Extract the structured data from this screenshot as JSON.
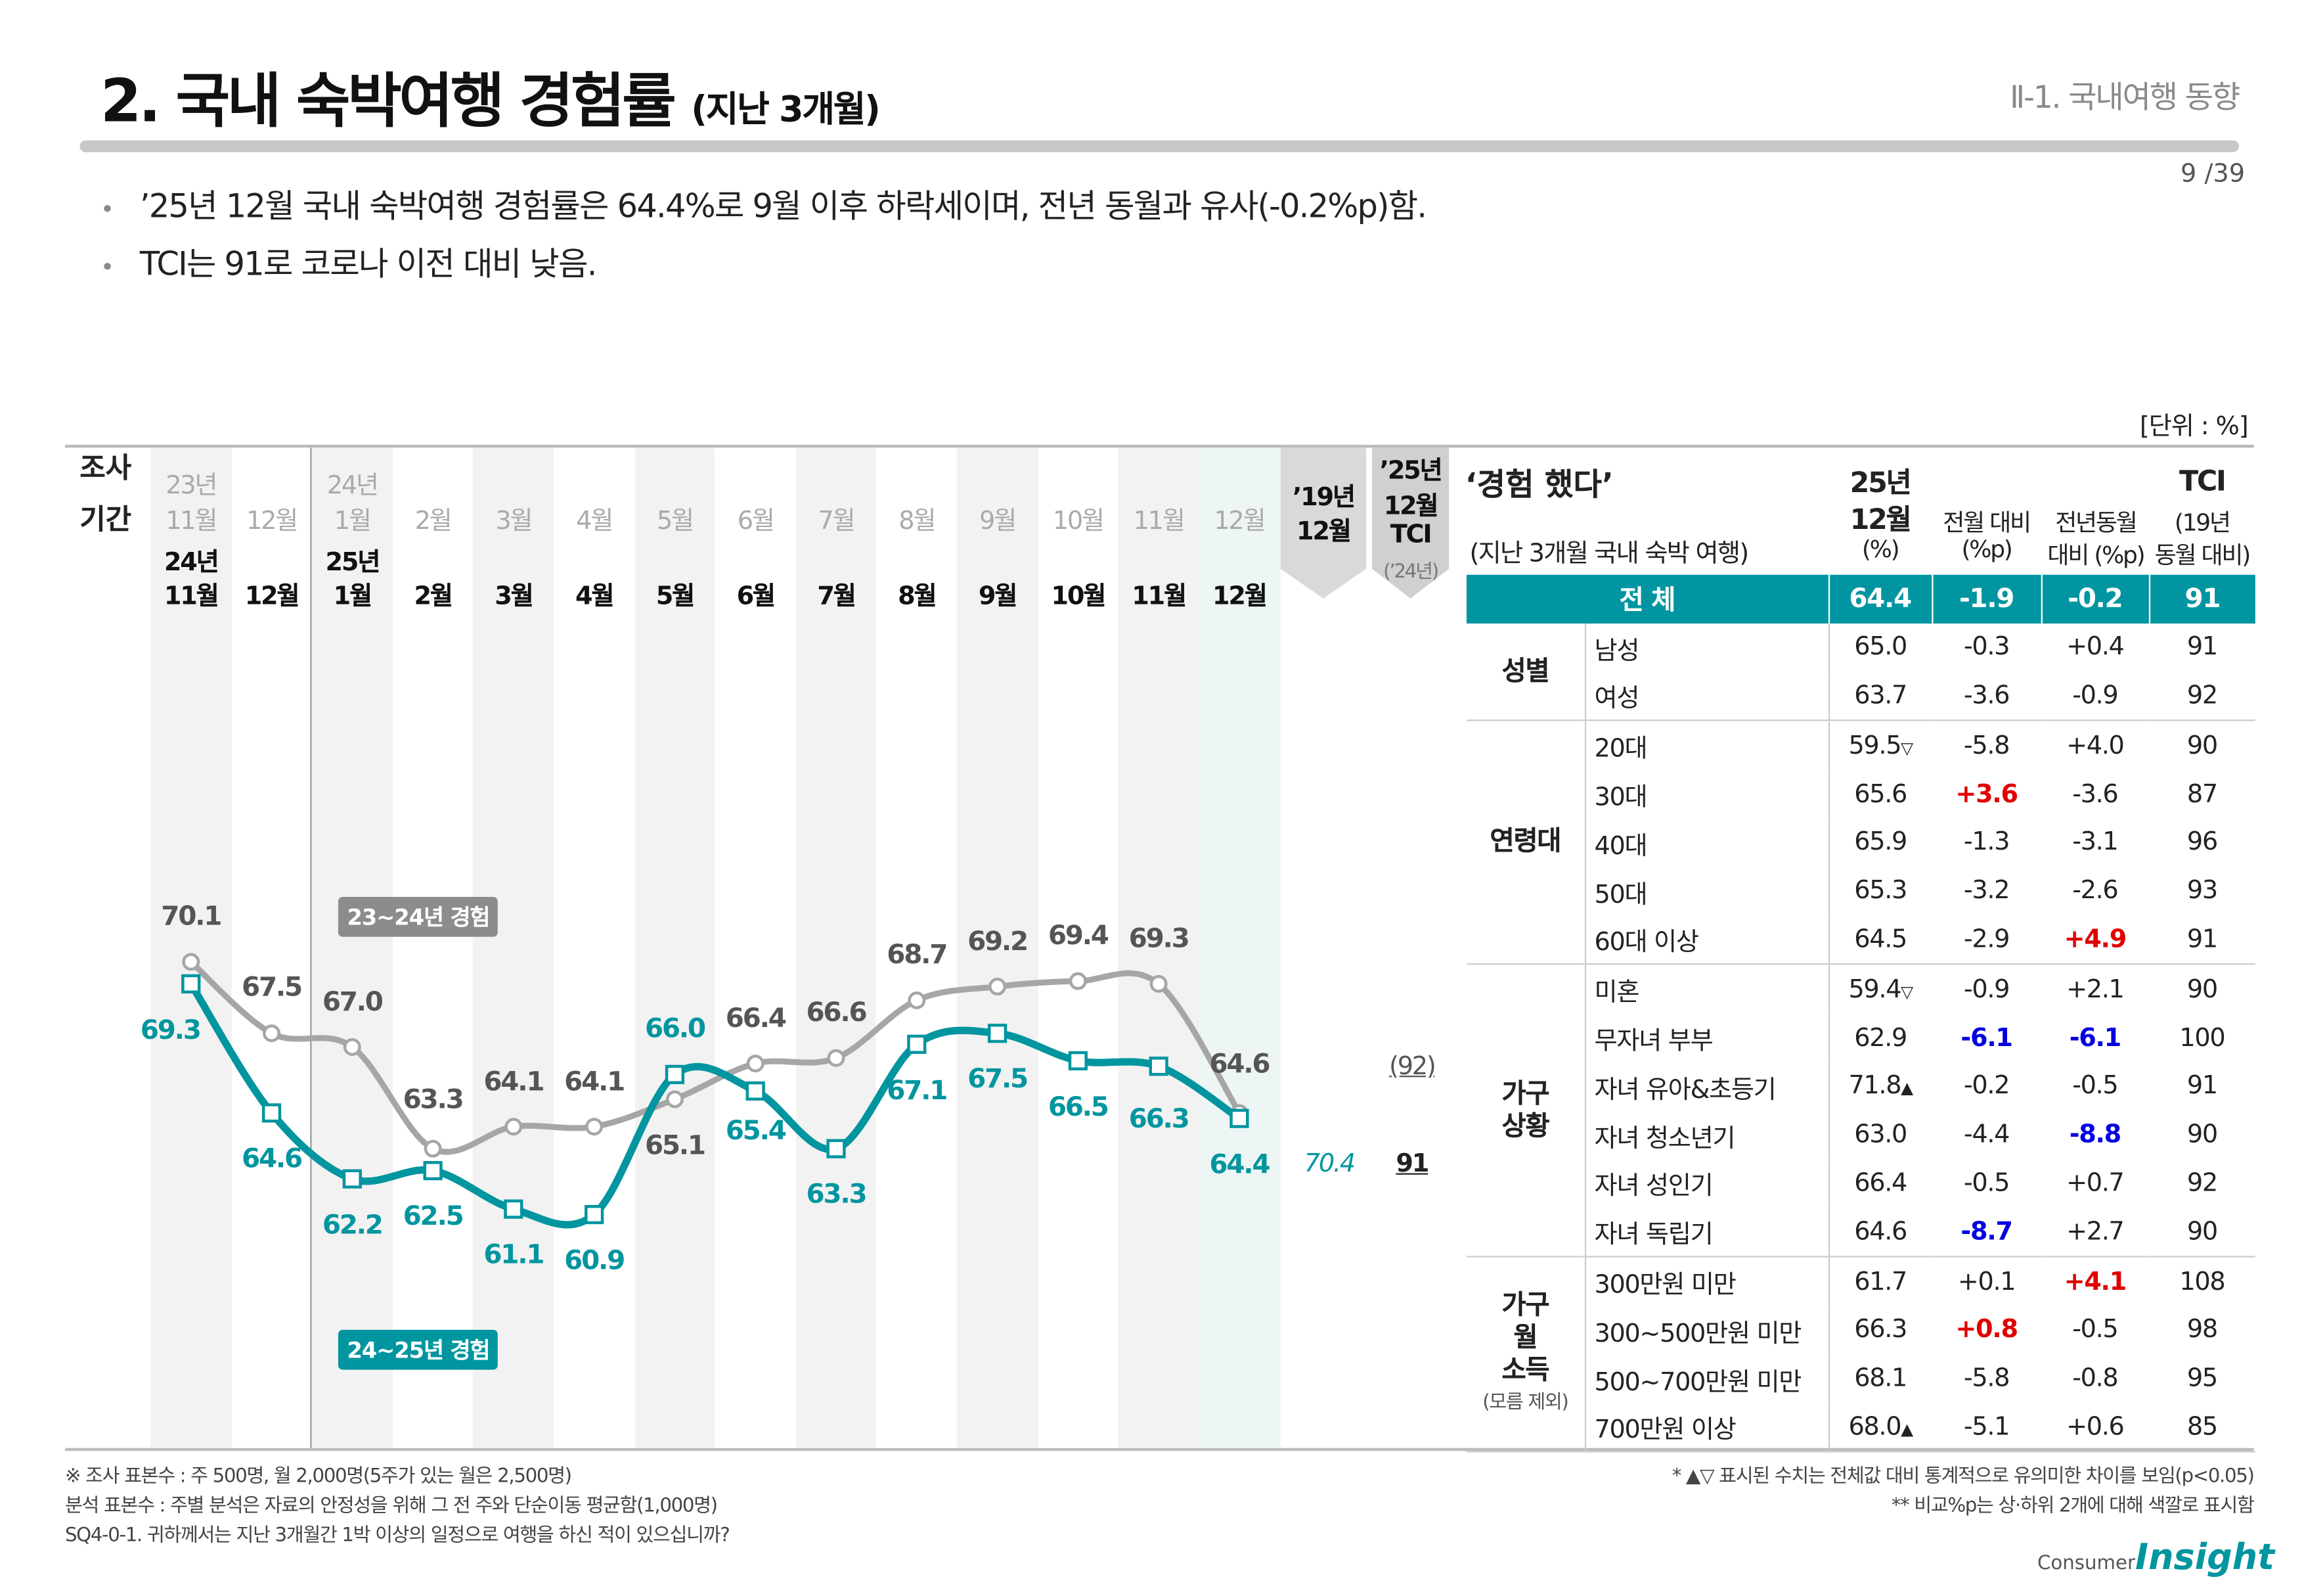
{
  "header": {
    "title": "2. 국내 숙박여행 경험률",
    "title_sub": "(지난 3개월)",
    "section": "Ⅱ-1. 국내여행 동향",
    "page": "9 /39"
  },
  "bullets": [
    "’25년 12월 국내 숙박여행 경험률은 64.4%로 9월 이후 하락세이며, 전년 동월과 유사(-0.2%p)함.",
    "TCI는 91로 코로나 이전 대비 낮음."
  ],
  "unit": "[단위 : %]",
  "chart_data": {
    "type": "line",
    "period_label": [
      "조사",
      "기간"
    ],
    "categories_prev": [
      "11월",
      "12월",
      "1월",
      "2월",
      "3월",
      "4월",
      "5월",
      "6월",
      "7월",
      "8월",
      "9월",
      "10월",
      "11월",
      "12월"
    ],
    "categories_prev_year": {
      "0": "23년",
      "2": "24년"
    },
    "categories": [
      "11월",
      "12월",
      "1월",
      "2월",
      "3월",
      "4월",
      "5월",
      "6월",
      "7월",
      "8월",
      "9월",
      "10월",
      "11월",
      "12월"
    ],
    "categories_year": {
      "0": "24년",
      "2": "25년"
    },
    "series": [
      {
        "name": "23~24년 경험",
        "color": "#a6a6a6",
        "values": [
          70.1,
          67.5,
          67.0,
          63.3,
          64.1,
          64.1,
          65.1,
          66.4,
          66.6,
          68.7,
          69.2,
          69.4,
          69.3,
          64.6
        ]
      },
      {
        "name": "24~25년 경험",
        "color": "#00959f",
        "values": [
          69.3,
          64.6,
          62.2,
          62.5,
          61.1,
          60.9,
          66.0,
          65.4,
          63.3,
          67.1,
          67.5,
          66.5,
          66.3,
          64.4
        ]
      }
    ],
    "baseline_header": [
      "’19년",
      "12월"
    ],
    "baseline_value": "70.4",
    "tci_header": [
      "’25년",
      "12월",
      "TCI"
    ],
    "tci_sub": "(’24년)",
    "tci_prev": "(92)",
    "tci_value": "91"
  },
  "table": {
    "title": "‘경험 했다’",
    "subtitle": "(지난 3개월 국내 숙박 여행)",
    "headers": [
      [
        "25년",
        "12월",
        "(%)"
      ],
      [
        "전월 대비",
        "(%p)"
      ],
      [
        "전년동월",
        "대비 (%p)"
      ],
      [
        "TCI",
        "(19년",
        "동월 대비)"
      ]
    ],
    "total": {
      "label": "전  체",
      "value": "64.4",
      "mom": "-1.9",
      "yoy": "-0.2",
      "tci": "91"
    },
    "groups": [
      {
        "label": "성별",
        "sub": "",
        "rows": [
          {
            "item": "남성",
            "value": "65.0",
            "mark": "",
            "mom": "-0.3",
            "yoy": "+0.4",
            "tci": "91"
          },
          {
            "item": "여성",
            "value": "63.7",
            "mark": "",
            "mom": "-3.6",
            "yoy": "-0.9",
            "tci": "92"
          }
        ]
      },
      {
        "label": "연령대",
        "sub": "",
        "rows": [
          {
            "item": "20대",
            "value": "59.5",
            "mark": "▽",
            "mom": "-5.8",
            "yoy": "+4.0",
            "tci": "90"
          },
          {
            "item": "30대",
            "value": "65.6",
            "mark": "",
            "mom": "+3.6",
            "mom_color": "red",
            "yoy": "-3.6",
            "tci": "87"
          },
          {
            "item": "40대",
            "value": "65.9",
            "mark": "",
            "mom": "-1.3",
            "yoy": "-3.1",
            "tci": "96"
          },
          {
            "item": "50대",
            "value": "65.3",
            "mark": "",
            "mom": "-3.2",
            "yoy": "-2.6",
            "tci": "93"
          },
          {
            "item": "60대 이상",
            "value": "64.5",
            "mark": "",
            "mom": "-2.9",
            "yoy": "+4.9",
            "yoy_color": "red",
            "tci": "91"
          }
        ]
      },
      {
        "label": "가구 상황",
        "sub": "",
        "rows": [
          {
            "item": "미혼",
            "value": "59.4",
            "mark": "▽",
            "mom": "-0.9",
            "yoy": "+2.1",
            "tci": "90"
          },
          {
            "item": "무자녀 부부",
            "value": "62.9",
            "mark": "",
            "mom": "-6.1",
            "mom_color": "blue",
            "yoy": "-6.1",
            "yoy_color": "blue",
            "tci": "100"
          },
          {
            "item": "자녀 유아&초등기",
            "value": "71.8",
            "mark": "▲",
            "mom": "-0.2",
            "yoy": "-0.5",
            "tci": "91"
          },
          {
            "item": "자녀 청소년기",
            "value": "63.0",
            "mark": "",
            "mom": "-4.4",
            "yoy": "-8.8",
            "yoy_color": "blue",
            "tci": "90"
          },
          {
            "item": "자녀 성인기",
            "value": "66.4",
            "mark": "",
            "mom": "-0.5",
            "yoy": "+0.7",
            "tci": "92"
          },
          {
            "item": "자녀 독립기",
            "value": "64.6",
            "mark": "",
            "mom": "-8.7",
            "mom_color": "blue",
            "yoy": "+2.7",
            "tci": "90"
          }
        ]
      },
      {
        "label": "가구 월 소득",
        "sub": "(모름 제외)",
        "rows": [
          {
            "item": "300만원 미만",
            "value": "61.7",
            "mark": "",
            "mom": "+0.1",
            "yoy": "+4.1",
            "yoy_color": "red",
            "tci": "108"
          },
          {
            "item": "300~500만원 미만",
            "value": "66.3",
            "mark": "",
            "mom": "+0.8",
            "mom_color": "red",
            "yoy": "-0.5",
            "tci": "98"
          },
          {
            "item": "500~700만원 미만",
            "value": "68.1",
            "mark": "",
            "mom": "-5.8",
            "yoy": "-0.8",
            "tci": "95"
          },
          {
            "item": "700만원 이상",
            "value": "68.0",
            "mark": "▲",
            "mom": "-5.1",
            "yoy": "+0.6",
            "tci": "85"
          }
        ]
      }
    ]
  },
  "footer": {
    "left": [
      "※ 조사 표본수 : 주 500명, 월 2,000명(5주가 있는 월은 2,500명)",
      " 분석 표본수 : 주별 분석은 자료의 안정성을 위해 그 전 주와 단순이동 평균함(1,000명)",
      "SQ4-0-1. 귀하께서는 지난 3개월간 1박 이상의 일정으로 여행을 하신 적이 있으십니까?"
    ],
    "right": [
      "* ▲▽ 표시된 수치는 전체값 대비 통계적으로 유의미한 차이를 보임(p<0.05)",
      "** 비교%p는 상·하위 2개에 대해 색깔로 표시함"
    ]
  },
  "logo": {
    "small": "Consumer",
    "big": "Insight"
  },
  "colors": {
    "teal": "#00959f",
    "gray_line": "#a6a6a6",
    "red": "#e00000",
    "blue": "#0000e0"
  }
}
